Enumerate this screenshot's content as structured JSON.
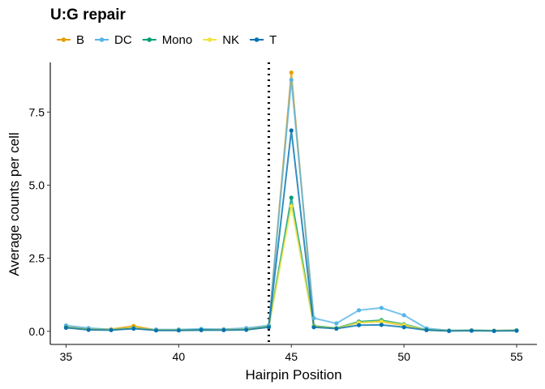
{
  "chart_data": {
    "type": "line",
    "title": "U:G repair",
    "xlabel": "Hairpin Position",
    "ylabel": "Average counts per cell",
    "xlim": [
      34.3,
      55.9
    ],
    "ylim": [
      -0.45,
      9.2
    ],
    "xticks": [
      35,
      40,
      45,
      50,
      55
    ],
    "yticks": [
      0.0,
      2.5,
      5.0,
      7.5
    ],
    "ytick_labels": [
      "0.0",
      "2.5",
      "5.0",
      "7.5"
    ],
    "vline_x": 44,
    "vline_style": "dotted",
    "grid": false,
    "legend_position": "top",
    "x": [
      35,
      36,
      37,
      38,
      39,
      40,
      41,
      42,
      43,
      44,
      45,
      46,
      47,
      48,
      49,
      50,
      51,
      52,
      53,
      54,
      55
    ],
    "series": [
      {
        "name": "B",
        "color": "#E69F00",
        "values": [
          0.14,
          0.08,
          0.07,
          0.18,
          0.04,
          0.04,
          0.05,
          0.06,
          0.07,
          0.17,
          8.85,
          0.18,
          0.1,
          0.3,
          0.33,
          0.2,
          0.05,
          0.02,
          0.03,
          0.02,
          0.03
        ]
      },
      {
        "name": "DC",
        "color": "#56B4E9",
        "values": [
          0.2,
          0.11,
          0.06,
          0.09,
          0.06,
          0.06,
          0.08,
          0.07,
          0.11,
          0.2,
          8.6,
          0.45,
          0.27,
          0.72,
          0.8,
          0.55,
          0.1,
          0.03,
          0.04,
          0.02,
          0.04
        ]
      },
      {
        "name": "Mono",
        "color": "#009E73",
        "values": [
          0.14,
          0.06,
          0.05,
          0.11,
          0.04,
          0.04,
          0.05,
          0.05,
          0.06,
          0.16,
          4.57,
          0.18,
          0.11,
          0.33,
          0.38,
          0.24,
          0.05,
          0.02,
          0.03,
          0.02,
          0.03
        ]
      },
      {
        "name": "NK",
        "color": "#F0E442",
        "values": [
          0.13,
          0.06,
          0.05,
          0.1,
          0.04,
          0.04,
          0.04,
          0.05,
          0.06,
          0.15,
          4.28,
          0.16,
          0.1,
          0.3,
          0.34,
          0.22,
          0.04,
          0.02,
          0.03,
          0.02,
          0.03
        ]
      },
      {
        "name": "T",
        "color": "#0072B2",
        "values": [
          0.12,
          0.05,
          0.04,
          0.09,
          0.03,
          0.03,
          0.04,
          0.04,
          0.05,
          0.14,
          6.87,
          0.14,
          0.09,
          0.21,
          0.22,
          0.14,
          0.04,
          0.01,
          0.02,
          0.01,
          0.02
        ]
      }
    ]
  }
}
